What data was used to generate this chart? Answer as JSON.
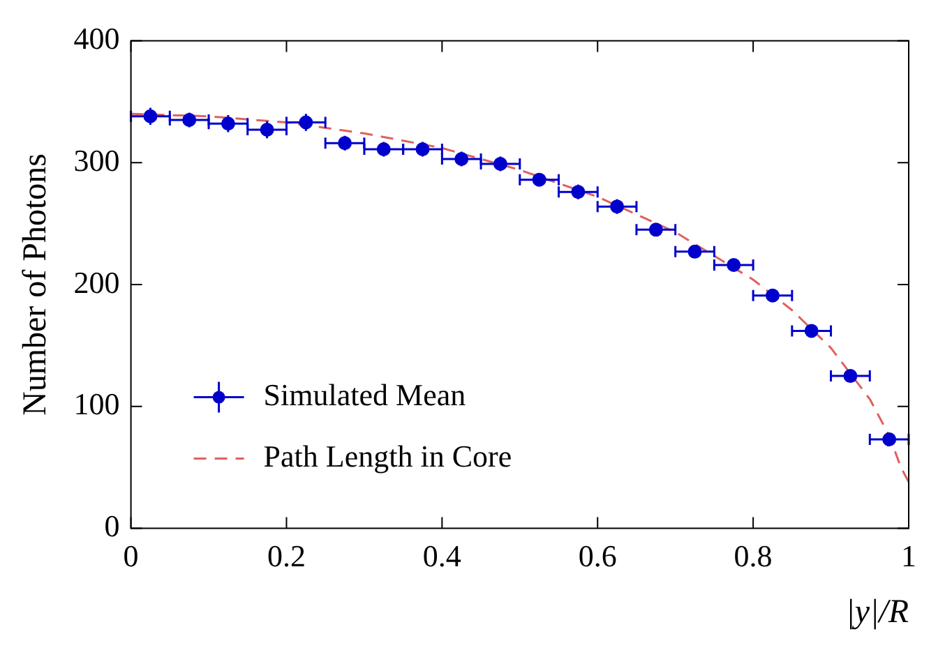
{
  "chart_data": {
    "type": "scatter",
    "xlabel": "|y|/R",
    "ylabel": "Number of Photons",
    "xlim": [
      0,
      1
    ],
    "ylim": [
      0,
      400
    ],
    "xticks": [
      0,
      0.2,
      0.4,
      0.6,
      0.8,
      1
    ],
    "yticks": [
      0,
      100,
      200,
      300,
      400
    ],
    "grid": false,
    "legend": "bottom left",
    "marker": "circle",
    "series": [
      {
        "name": "Simulated Mean",
        "type": "scatter",
        "color": "#0000cc",
        "x": [
          0.025,
          0.075,
          0.125,
          0.175,
          0.225,
          0.275,
          0.325,
          0.375,
          0.425,
          0.475,
          0.525,
          0.575,
          0.625,
          0.675,
          0.725,
          0.775,
          0.825,
          0.875,
          0.925,
          0.975
        ],
        "values": [
          338,
          335,
          332,
          327,
          333,
          316,
          311,
          311,
          303,
          299,
          286,
          276,
          264,
          245,
          227,
          216,
          191,
          162,
          125,
          73
        ],
        "errors": [
          7,
          6,
          7,
          7,
          7,
          6,
          6,
          6,
          6,
          6,
          5,
          6,
          6,
          5,
          5,
          5,
          5,
          5,
          5,
          5
        ],
        "xerrors": [
          0.025,
          0.025,
          0.025,
          0.025,
          0.025,
          0.025,
          0.025,
          0.025,
          0.025,
          0.025,
          0.025,
          0.025,
          0.025,
          0.025,
          0.025,
          0.025,
          0.025,
          0.025,
          0.025,
          0.025
        ]
      },
      {
        "name": "Path Length in Core",
        "type": "line",
        "color": "#e06060",
        "line_style": "dashed",
        "marker": "none",
        "x": [
          0,
          0.1,
          0.2,
          0.3,
          0.4,
          0.5,
          0.6,
          0.7,
          0.8,
          0.85,
          0.9,
          0.95,
          0.975,
          0.99,
          1
        ],
        "values": [
          340,
          338,
          333,
          324,
          312,
          294,
          272,
          243,
          204,
          179,
          148,
          106,
          76,
          50,
          38
        ]
      }
    ]
  }
}
